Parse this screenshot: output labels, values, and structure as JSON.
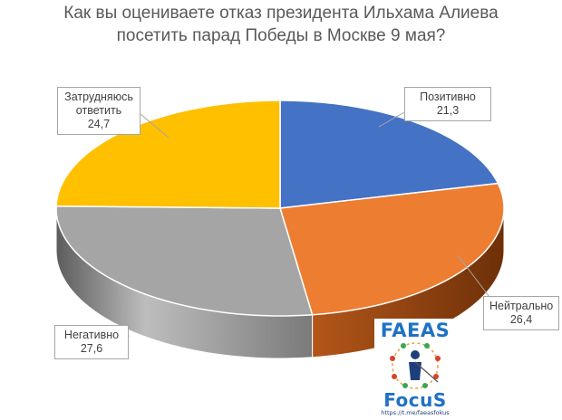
{
  "title_lines": [
    "Как вы оцениваете отказ президента Ильхама Алиева",
    "посетить парад Победы в Москве 9 мая?"
  ],
  "chart_data": {
    "type": "pie",
    "title": "Как вы оцениваете отказ президента Ильхама Алиева посетить парад Победы в Москве 9 мая?",
    "slices": [
      {
        "label": "Позитивно",
        "value": 21.3,
        "value_label": "21,3",
        "color": "#4472c4"
      },
      {
        "label": "Нейтрально",
        "value": 26.4,
        "value_label": "26,4",
        "color": "#ed7d31"
      },
      {
        "label": "Негативно",
        "value": 27.6,
        "value_label": "27,6",
        "color": "#a5a5a5"
      },
      {
        "label": "Затрудняюсь ответить",
        "value": 24.7,
        "value_label": "24,7",
        "color": "#ffc000"
      }
    ],
    "legend": "none",
    "style": "3d"
  },
  "callouts": {
    "positive": {
      "label": "Позитивно",
      "value": "21,3"
    },
    "neutral": {
      "label": "Нейтрально",
      "value": "26,4"
    },
    "negative": {
      "label": "Негативно",
      "value": "27,6"
    },
    "hard": {
      "line1": "Затрудняюсь",
      "line2": "ответить",
      "value": "24,7"
    }
  },
  "logo": {
    "top_word": "FAEAS",
    "bottom_word": "FocuS",
    "url": "https://t.me/faeasfokus",
    "color": "#1f72c4"
  }
}
